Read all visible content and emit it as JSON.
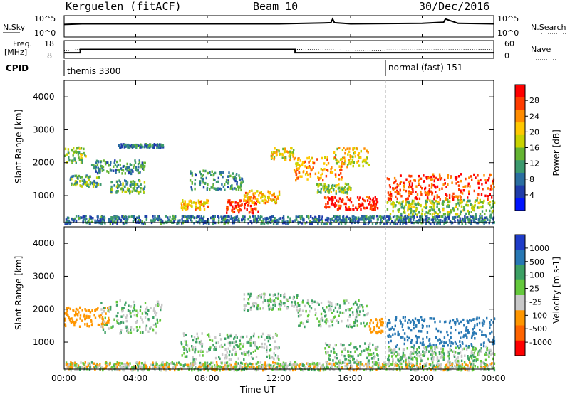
{
  "header": {
    "station": "Kerguelen (fitACF)",
    "beam": "Beam 10",
    "date": "30/Dec/2016"
  },
  "noise_panel": {
    "left_label": "N.Sky",
    "right_label": "N.Search",
    "left_ticks": [
      "10^5",
      "10^0"
    ],
    "right_ticks": [
      "10^5",
      "10^0"
    ]
  },
  "freq_panel": {
    "left_label_1": "Freq.",
    "left_label_2": "[MHz]",
    "right_label": "Nave",
    "left_ticks": [
      "18",
      "8"
    ],
    "right_ticks": [
      "60",
      "0"
    ]
  },
  "cpid_panel": {
    "label": "CPID",
    "segments": [
      "themis 3300",
      "normal (fast) 151"
    ]
  },
  "axes": {
    "x_ticks": [
      "00:00",
      "04:00",
      "08:00",
      "12:00",
      "16:00",
      "20:00",
      "00:00"
    ],
    "x_label": "Time UT",
    "y_label": "Slant Range [km]",
    "y_ticks": [
      "4000",
      "3000",
      "2000",
      "1000"
    ]
  },
  "power_colorbar": {
    "label": "Power [dB]",
    "ticks": [
      "28",
      "24",
      "20",
      "16",
      "12",
      "8",
      "4"
    ],
    "colors": [
      "#ff0000",
      "#ff3c00",
      "#ff8c00",
      "#ffc800",
      "#c8d200",
      "#64b432",
      "#3c9a6e",
      "#2a6ea0",
      "#1f3caa",
      "#0014ff"
    ]
  },
  "velocity_colorbar": {
    "label": "Velocity [m s-1]",
    "ticks": [
      "1000",
      "500",
      "100",
      "25",
      "-25",
      "-100",
      "-500",
      "-1000"
    ],
    "colors": [
      "#1e3cc8",
      "#2878b4",
      "#3ca064",
      "#64c83c",
      "#c8c8c8",
      "#ff9600",
      "#ff6400",
      "#ff0000"
    ]
  },
  "chart_data": [
    {
      "type": "line",
      "title": "N.Sky / N.Search",
      "x_range_hours": [
        0,
        24
      ],
      "y_scale": "log",
      "ylim": [
        "10^0",
        "10^5"
      ],
      "series": [
        {
          "name": "N.Sky",
          "x": [
            0,
            1,
            4,
            8,
            12,
            14.5,
            14.9,
            15,
            15.1,
            16,
            20,
            21.2,
            21.3,
            22,
            24
          ],
          "y": [
            1000,
            1500,
            1500,
            1500,
            1500,
            2500,
            3000,
            30000,
            3000,
            1500,
            2000,
            4000,
            30000,
            2000,
            1500
          ]
        }
      ]
    },
    {
      "type": "line",
      "title": "Frequency / Nave",
      "x_range_hours": [
        0,
        24
      ],
      "ylim_freq_mhz": [
        8,
        18
      ],
      "ylim_nave": [
        0,
        60
      ],
      "series": [
        {
          "name": "Freq",
          "x": [
            0,
            0.9,
            0.9,
            12.9,
            12.9,
            24
          ],
          "y": [
            11,
            11,
            13,
            13,
            11,
            11
          ]
        },
        {
          "name": "Nave",
          "x": [
            0,
            1,
            13,
            17.9,
            18,
            24
          ],
          "y": [
            25,
            30,
            30,
            25,
            28,
            30
          ]
        }
      ]
    },
    {
      "type": "heatmap",
      "quantity": "Power",
      "unit": "dB",
      "x_range_hours": [
        0,
        24
      ],
      "ylim_km": [
        180,
        4500
      ],
      "value_range": [
        0,
        30
      ],
      "cpid_change_hour": 18,
      "regions": [
        {
          "t0": 0.0,
          "t1": 24.0,
          "r0": 180,
          "r1": 420,
          "value": 8
        },
        {
          "t0": 0.0,
          "t1": 1.2,
          "r0": 2000,
          "r1": 2500,
          "value": 14
        },
        {
          "t0": 0.3,
          "t1": 2.0,
          "r0": 1300,
          "r1": 1650,
          "value": 12
        },
        {
          "t0": 1.5,
          "t1": 4.5,
          "r0": 1700,
          "r1": 2100,
          "value": 10
        },
        {
          "t0": 2.5,
          "t1": 4.5,
          "r0": 1100,
          "r1": 1500,
          "value": 12
        },
        {
          "t0": 3.0,
          "t1": 5.5,
          "r0": 2500,
          "r1": 2600,
          "value": 8
        },
        {
          "t0": 6.5,
          "t1": 8.0,
          "r0": 600,
          "r1": 900,
          "value": 20
        },
        {
          "t0": 7.0,
          "t1": 10.0,
          "r0": 1200,
          "r1": 1800,
          "value": 10
        },
        {
          "t0": 9.0,
          "t1": 10.8,
          "r0": 500,
          "r1": 900,
          "value": 26
        },
        {
          "t0": 10.0,
          "t1": 12.0,
          "r0": 800,
          "r1": 1200,
          "value": 20
        },
        {
          "t0": 11.5,
          "t1": 12.8,
          "r0": 2100,
          "r1": 2500,
          "value": 18
        },
        {
          "t0": 12.8,
          "t1": 15.5,
          "r0": 1500,
          "r1": 2200,
          "value": 22
        },
        {
          "t0": 15.0,
          "t1": 17.0,
          "r0": 1900,
          "r1": 2500,
          "value": 18
        },
        {
          "t0": 14.5,
          "t1": 17.5,
          "r0": 600,
          "r1": 1000,
          "value": 28
        },
        {
          "t0": 14.0,
          "t1": 16.0,
          "r0": 1100,
          "r1": 1400,
          "value": 14
        },
        {
          "t0": 18.0,
          "t1": 24.0,
          "r0": 900,
          "r1": 1700,
          "value": 26
        },
        {
          "t0": 18.0,
          "t1": 24.0,
          "r0": 450,
          "r1": 900,
          "value": 14
        }
      ]
    },
    {
      "type": "heatmap",
      "quantity": "Velocity",
      "unit": "m s-1",
      "x_range_hours": [
        0,
        24
      ],
      "ylim_km": [
        180,
        4500
      ],
      "value_range": [
        -1000,
        1000
      ],
      "regions": [
        {
          "t0": 0.0,
          "t1": 24.0,
          "r0": 180,
          "r1": 420,
          "value": -50
        },
        {
          "t0": 0.0,
          "t1": 2.5,
          "r0": 1500,
          "r1": 2100,
          "value": -300
        },
        {
          "t0": 2.0,
          "t1": 5.5,
          "r0": 1300,
          "r1": 2300,
          "value": 0
        },
        {
          "t0": 6.5,
          "t1": 12.0,
          "r0": 500,
          "r1": 1300,
          "value": 0
        },
        {
          "t0": 10.0,
          "t1": 13.0,
          "r0": 2000,
          "r1": 2500,
          "value": 0
        },
        {
          "t0": 13.0,
          "t1": 17.0,
          "r0": 1500,
          "r1": 2300,
          "value": 0
        },
        {
          "t0": 14.5,
          "t1": 17.5,
          "r0": 400,
          "r1": 1000,
          "value": 0
        },
        {
          "t0": 17.0,
          "t1": 17.8,
          "r0": 1300,
          "r1": 1800,
          "value": -300
        },
        {
          "t0": 18.0,
          "t1": 24.0,
          "r0": 900,
          "r1": 1800,
          "value": 200
        },
        {
          "t0": 18.0,
          "t1": 24.0,
          "r0": 450,
          "r1": 900,
          "value": 0
        }
      ]
    }
  ]
}
